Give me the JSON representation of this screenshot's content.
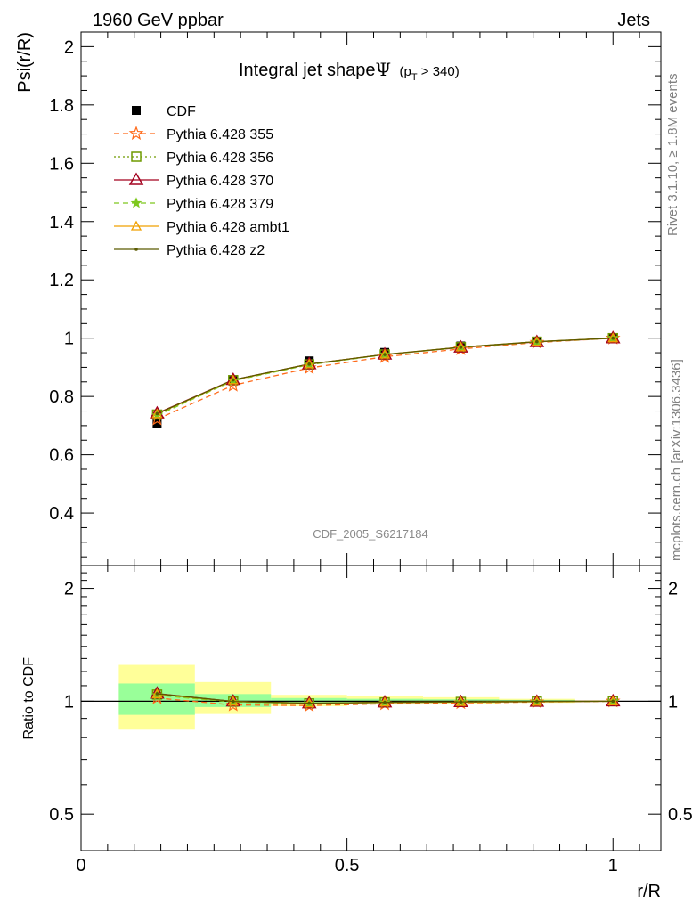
{
  "header": {
    "left": "1960 GeV ppbar",
    "right": "Jets"
  },
  "side": {
    "rivet": "Rivet 3.1.10, ≥ 1.8M events",
    "mcplots": "mcplots.cern.ch [arXiv:1306.3436]"
  },
  "colors": {
    "cdf": "#000000",
    "p355": "#ff6a1a",
    "p356": "#6f9a00",
    "p370": "#a3001e",
    "p379": "#7ec81e",
    "ambt1": "#f0a000",
    "z2": "#5a5a00",
    "band_inner": "#99ff99",
    "band_outer": "#ffff99"
  },
  "chart_data": [
    {
      "type": "line",
      "title": "Integral jet shape",
      "title_symbol": "Ψ",
      "title_cut_prefix": "(p",
      "title_cut_sub": "T",
      "title_cut_suffix": " > 340)",
      "ylabel": "Psi(r/R)",
      "xlim": [
        0,
        1.09
      ],
      "ylim": [
        0.22,
        2.05
      ],
      "yticks": [
        0.4,
        0.6,
        0.8,
        1,
        1.2,
        1.4,
        1.6,
        1.8,
        2
      ],
      "ytick_labels": [
        "0.4",
        "0.6",
        "0.8",
        "1",
        "1.2",
        "1.4",
        "1.6",
        "1.8",
        "2"
      ],
      "watermark": "CDF_2005_S6217184",
      "x": [
        0.143,
        0.286,
        0.429,
        0.571,
        0.714,
        0.857,
        1.0
      ],
      "series": [
        {
          "name": "CDF",
          "key": "cdf",
          "marker": "square",
          "line": "none",
          "values": [
            0.708,
            0.858,
            0.922,
            0.951,
            0.973,
            0.99,
            1.0
          ]
        },
        {
          "name": "Pythia 6.428 355",
          "key": "p355",
          "marker": "star",
          "line": "dashed",
          "values": [
            0.722,
            0.838,
            0.898,
            0.936,
            0.963,
            0.985,
            1.0
          ]
        },
        {
          "name": "Pythia 6.428 356",
          "key": "p356",
          "marker": "open-square",
          "line": "dotted",
          "values": [
            0.738,
            0.856,
            0.91,
            0.944,
            0.969,
            0.988,
            1.0
          ]
        },
        {
          "name": "Pythia 6.428 370",
          "key": "p370",
          "marker": "open-triangle",
          "line": "solid",
          "values": [
            0.742,
            0.857,
            0.911,
            0.944,
            0.968,
            0.987,
            1.0
          ]
        },
        {
          "name": "Pythia 6.428 379",
          "key": "p379",
          "marker": "small-star",
          "line": "dashed",
          "values": [
            0.735,
            0.854,
            0.909,
            0.943,
            0.968,
            0.987,
            1.0
          ]
        },
        {
          "name": "Pythia 6.428 ambt1",
          "key": "ambt1",
          "marker": "open-triangle-small",
          "line": "solid",
          "values": [
            0.74,
            0.856,
            0.911,
            0.944,
            0.969,
            0.988,
            1.0
          ]
        },
        {
          "name": "Pythia 6.428 z2",
          "key": "z2",
          "marker": "dot",
          "line": "solid",
          "values": [
            0.741,
            0.857,
            0.911,
            0.944,
            0.969,
            0.988,
            1.0
          ]
        }
      ],
      "legend": "top-left"
    },
    {
      "type": "line",
      "ylabel": "Ratio to CDF",
      "xlabel": "r/R",
      "xlim": [
        0,
        1.09
      ],
      "ylim": [
        0.4,
        2.3
      ],
      "yticks": [
        0.5,
        1,
        2
      ],
      "ytick_labels": [
        "0.5",
        "1",
        "2"
      ],
      "xticks": [
        0,
        0.5,
        1
      ],
      "xtick_labels": [
        "0",
        "0.5",
        "1"
      ],
      "log_y": true,
      "bands": {
        "x_low": [
          0.071,
          0.214,
          0.357,
          0.5,
          0.643,
          0.786
        ],
        "x_high": [
          0.214,
          0.357,
          0.5,
          0.643,
          0.786,
          0.929
        ],
        "inner_low": [
          0.92,
          0.965,
          0.985,
          0.99,
          0.99,
          0.995
        ],
        "inner_high": [
          1.115,
          1.045,
          1.02,
          1.015,
          1.012,
          1.008
        ],
        "outer_low": [
          0.84,
          0.925,
          0.97,
          0.98,
          0.985,
          0.99
        ],
        "outer_high": [
          1.25,
          1.125,
          1.04,
          1.03,
          1.025,
          1.015
        ]
      },
      "x": [
        0.143,
        0.286,
        0.429,
        0.571,
        0.714,
        0.857,
        1.0
      ],
      "series": [
        {
          "name": "Pythia 6.428 355",
          "key": "p355",
          "values": [
            1.02,
            0.977,
            0.974,
            0.984,
            0.99,
            0.995,
            1.0
          ]
        },
        {
          "name": "Pythia 6.428 356",
          "key": "p356",
          "values": [
            1.042,
            0.998,
            0.987,
            0.993,
            0.996,
            0.998,
            1.0
          ]
        },
        {
          "name": "Pythia 6.428 370",
          "key": "p370",
          "values": [
            1.048,
            0.999,
            0.988,
            0.993,
            0.995,
            0.997,
            1.0
          ]
        },
        {
          "name": "Pythia 6.428 379",
          "key": "p379",
          "values": [
            1.038,
            0.995,
            0.986,
            0.992,
            0.995,
            0.997,
            1.0
          ]
        },
        {
          "name": "Pythia 6.428 ambt1",
          "key": "ambt1",
          "values": [
            1.045,
            0.998,
            0.988,
            0.993,
            0.996,
            0.998,
            1.0
          ]
        },
        {
          "name": "Pythia 6.428 z2",
          "key": "z2",
          "values": [
            1.047,
            0.999,
            0.988,
            0.993,
            0.996,
            0.998,
            1.0
          ]
        }
      ]
    }
  ]
}
